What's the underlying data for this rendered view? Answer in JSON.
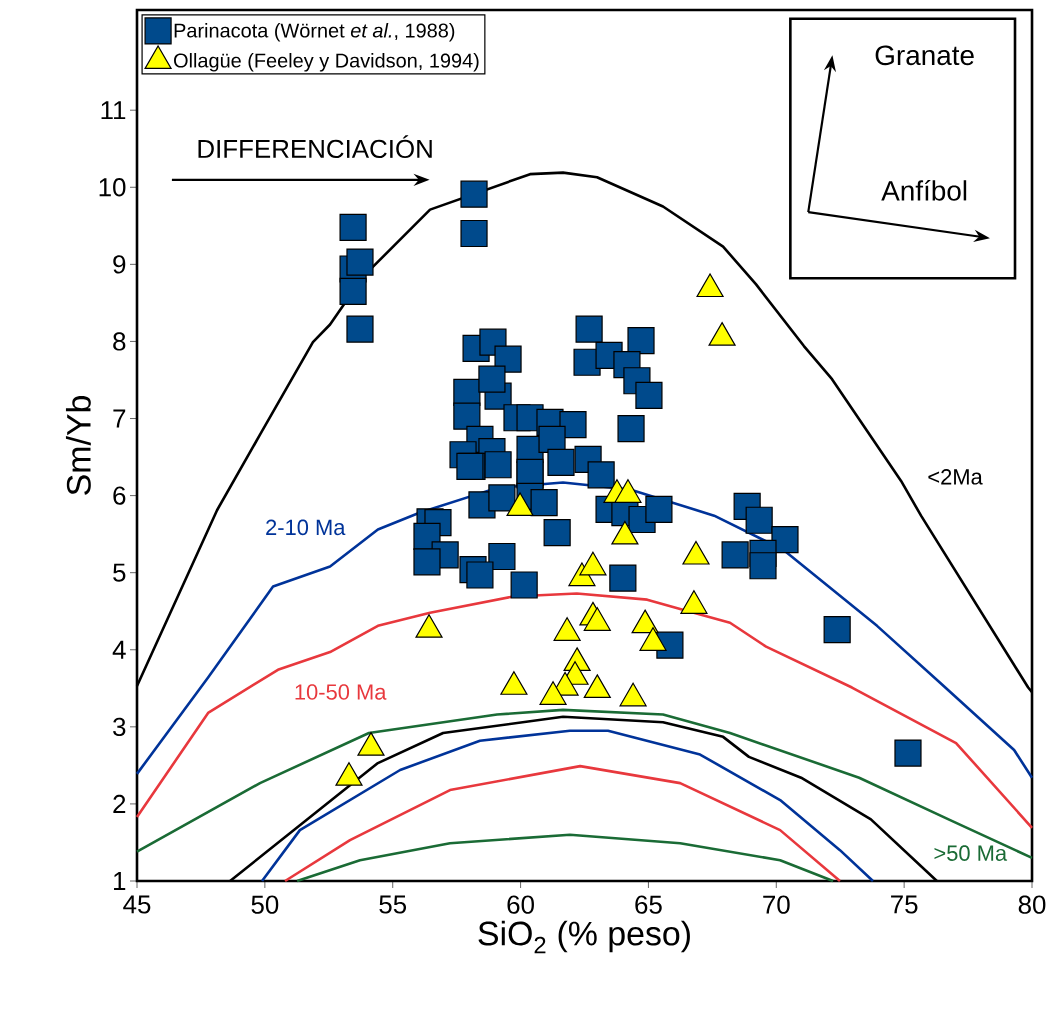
{
  "chart_data": {
    "type": "scatter",
    "xlabel": "SiO$_{2}$ (% peso)",
    "ylabel": "Sm/Yb",
    "xlim": [
      45,
      80
    ],
    "ylim": [
      1,
      12.3
    ],
    "xticks": [
      45,
      50,
      55,
      60,
      65,
      70,
      75,
      80
    ],
    "yticks": [
      1,
      2,
      3,
      4,
      5,
      6,
      7,
      8,
      9,
      10,
      11
    ],
    "legend": "top left",
    "annotations": [
      "DIFFERENCIACIÓN",
      "Granate",
      "Anfíbol"
    ],
    "series": [
      {
        "name": "Parinacota (Wörnet *et al.*, 1988)",
        "marker": "square",
        "color": "#004a8c",
        "x": [
          53.45,
          53.45,
          53.72,
          53.45,
          53.72,
          58.18,
          58.18,
          62.68,
          64.71,
          62.6,
          63.46,
          64.16,
          64.55,
          65.02,
          64.32,
          58.26,
          58.92,
          59.51,
          57.9,
          59.12,
          58.88,
          57.9,
          59.86,
          60.37,
          61.15,
          62.05,
          58.41,
          58.88,
          57.75,
          60.37,
          61.23,
          61.58,
          62.64,
          63.15,
          58.1,
          59.12,
          60.37,
          58.02,
          60.37,
          58.49,
          59.27,
          60.37,
          60.92,
          63.46,
          64.08,
          64.75,
          65.41,
          56.46,
          56.77,
          56.34,
          61.43,
          57.05,
          56.34,
          58.14,
          59.27,
          58.41,
          60.14,
          64.0,
          65.84,
          68.86,
          69.33,
          70.34,
          68.39,
          69.48,
          69.48,
          72.38,
          75.15
        ],
        "values": [
          9.48,
          8.94,
          9.03,
          8.65,
          8.16,
          9.91,
          9.4,
          8.16,
          8.01,
          7.73,
          7.82,
          7.7,
          7.49,
          7.3,
          6.87,
          7.91,
          7.99,
          7.77,
          7.34,
          7.29,
          7.51,
          7.03,
          7.01,
          7.01,
          6.95,
          6.92,
          6.73,
          6.57,
          6.53,
          6.6,
          6.73,
          6.43,
          6.47,
          6.27,
          6.38,
          6.4,
          6.27,
          6.38,
          6.3,
          5.88,
          5.97,
          5.99,
          5.91,
          5.82,
          5.78,
          5.69,
          5.82,
          5.66,
          5.65,
          5.47,
          5.52,
          5.23,
          5.14,
          5.04,
          5.21,
          4.97,
          4.84,
          4.93,
          4.06,
          5.86,
          5.68,
          5.43,
          5.23,
          5.25,
          5.09,
          4.26,
          2.66
        ]
      },
      {
        "name": "Ollagüe (Feeley y Davidson, 1994)",
        "marker": "triangle",
        "color": "#ffff00",
        "x": [
          67.41,
          67.88,
          66.86,
          66.78,
          59.98,
          63.77,
          64.2,
          64.08,
          62.4,
          62.83,
          56.42,
          61.82,
          62.83,
          63.0,
          64.87,
          65.18,
          62.21,
          62.13,
          61.74,
          59.74,
          61.27,
          63.0,
          64.4,
          53.29,
          54.15
        ],
        "values": [
          8.68,
          8.05,
          5.21,
          4.57,
          5.84,
          6.01,
          6.01,
          5.47,
          4.93,
          5.07,
          4.26,
          4.22,
          4.42,
          4.35,
          4.32,
          4.09,
          3.83,
          3.65,
          3.51,
          3.52,
          3.39,
          3.48,
          3.37,
          2.34,
          2.73
        ]
      },
      {
        "name": "<2Ma",
        "type": "line",
        "color": "#000000",
        "x": [
          45,
          48.13,
          49.81,
          51.88,
          52.55,
          53.84,
          56.46,
          60.37,
          61.66,
          62.99,
          65.57,
          67.92,
          69.21,
          71.08,
          72.18,
          74.88,
          75.66,
          79.85,
          80
        ],
        "values": [
          3.53,
          5.81,
          6.79,
          7.99,
          8.22,
          8.84,
          9.71,
          10.17,
          10.19,
          10.13,
          9.75,
          9.23,
          8.74,
          7.94,
          7.51,
          6.19,
          5.74,
          3.51,
          3.45
        ]
      },
      {
        "name": "2-10 Ma",
        "type": "line",
        "color": "#003399",
        "x": [
          45,
          47.78,
          50.32,
          52.55,
          54.42,
          56.07,
          59.08,
          61.66,
          64.28,
          67.57,
          70.26,
          73.94,
          76.48,
          79.3,
          80
        ],
        "values": [
          2.39,
          3.64,
          4.82,
          5.08,
          5.56,
          5.78,
          6.1,
          6.17,
          6.08,
          5.74,
          5.3,
          4.31,
          3.55,
          2.7,
          2.34
        ]
      },
      {
        "name": "10-50 Ma",
        "type": "line",
        "color": "#e8383d",
        "x": [
          45,
          47.78,
          50.51,
          52.55,
          54.42,
          56.46,
          59.7,
          62.2,
          64.95,
          66.24,
          68.19,
          69.6,
          72.96,
          77.03,
          80
        ],
        "values": [
          1.83,
          3.18,
          3.74,
          3.97,
          4.31,
          4.48,
          4.69,
          4.73,
          4.65,
          4.53,
          4.35,
          4.04,
          3.51,
          2.79,
          1.69
        ]
      },
      {
        "name": ">50 Ma",
        "type": "line",
        "color": "#1a6b35",
        "x": [
          45,
          49.81,
          54.07,
          59.08,
          61.66,
          65.57,
          68.19,
          73.24,
          76.8,
          80
        ],
        "values": [
          1.38,
          2.27,
          2.92,
          3.16,
          3.22,
          3.16,
          2.92,
          2.34,
          1.79,
          1.3
        ]
      },
      {
        "type": "line",
        "color": "#000000",
        "x": [
          48.64,
          54.42,
          56.97,
          61.66,
          65.57,
          67.92,
          68.93,
          70.97,
          73.7,
          76.28
        ],
        "values": [
          1,
          2.53,
          2.92,
          3.13,
          3.06,
          2.87,
          2.61,
          2.34,
          1.8,
          1
        ]
      },
      {
        "type": "line",
        "color": "#003399",
        "x": [
          49.89,
          51.37,
          55.29,
          58.41,
          61.93,
          63.42,
          67.02,
          70.15,
          72.49,
          73.78
        ],
        "values": [
          1,
          1.66,
          2.44,
          2.82,
          2.95,
          2.95,
          2.64,
          2.05,
          1.4,
          1
        ]
      },
      {
        "type": "line",
        "color": "#e8383d",
        "x": [
          50.79,
          53.33,
          57.24,
          62.33,
          66.24,
          70.15,
          72.49
        ],
        "values": [
          1,
          1.53,
          2.18,
          2.49,
          2.27,
          1.66,
          1
        ]
      },
      {
        "type": "line",
        "color": "#1a6b35",
        "x": [
          51.26,
          53.72,
          57.24,
          61.93,
          66.24,
          70.15,
          72.22
        ],
        "values": [
          1,
          1.27,
          1.49,
          1.6,
          1.49,
          1.27,
          1
        ]
      }
    ]
  }
}
